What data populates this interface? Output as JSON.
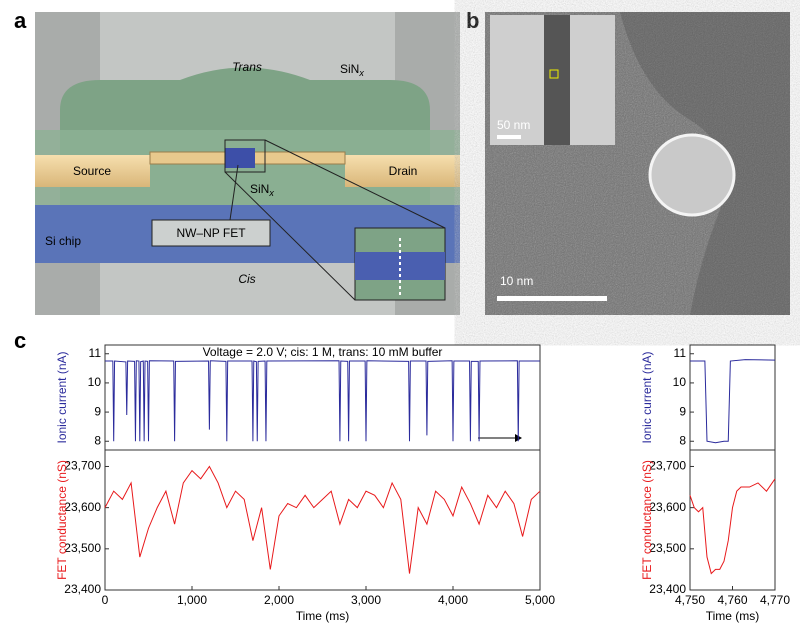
{
  "panels": [
    "a",
    "b",
    "c"
  ],
  "diagram": {
    "trans": "Trans",
    "cis": "Cis",
    "sinx_top": {
      "text": "SiN",
      "subscript": "x"
    },
    "sinx_mid": {
      "text": "SiN",
      "subscript": "x"
    },
    "source": "Source",
    "drain": "Drain",
    "device": "NW–NP FET",
    "chip": "Si chip"
  },
  "micrograph": {
    "inset_scale": "50 nm",
    "scale": "10 nm"
  },
  "chart_data": [
    {
      "type": "line",
      "color": "#2b2b9c",
      "ylabel": "Ionic current (nA)",
      "annotation": "Voltage = 2.0 V; cis: 1 M, trans: 10 mM buffer",
      "x": [
        0,
        90,
        100,
        110,
        240,
        250,
        260,
        340,
        350,
        360,
        390,
        400,
        410,
        440,
        450,
        460,
        490,
        500,
        510,
        790,
        800,
        810,
        1190,
        1200,
        1210,
        1390,
        1400,
        1410,
        1690,
        1700,
        1710,
        1740,
        1750,
        1760,
        1840,
        1850,
        1860,
        2690,
        2700,
        2710,
        2790,
        2800,
        2810,
        2990,
        3000,
        3010,
        3490,
        3500,
        3510,
        3690,
        3700,
        3710,
        3990,
        4000,
        4010,
        4190,
        4200,
        4210,
        4290,
        4300,
        4310,
        4740,
        4750,
        4760,
        5000
      ],
      "values": [
        10.75,
        10.75,
        8,
        10.75,
        10.72,
        8.9,
        10.75,
        10.74,
        8,
        10.76,
        10.75,
        8,
        10.73,
        10.75,
        8,
        10.75,
        10.74,
        8,
        10.76,
        10.75,
        8,
        10.74,
        10.75,
        8.4,
        10.76,
        10.74,
        8,
        10.75,
        10.75,
        8,
        10.75,
        10.73,
        8,
        10.74,
        10.75,
        8,
        10.75,
        10.76,
        8,
        10.75,
        10.74,
        8,
        10.75,
        10.75,
        8,
        10.76,
        10.74,
        8,
        10.75,
        10.75,
        8.2,
        10.74,
        10.76,
        8,
        10.75,
        10.75,
        8,
        10.74,
        10.74,
        8,
        10.75,
        10.76,
        8,
        10.75,
        10.75
      ],
      "xlim": [
        0,
        5000
      ],
      "ylim": [
        7.7,
        11.3
      ],
      "yticks": [
        8,
        9,
        10,
        11
      ]
    },
    {
      "type": "line",
      "color": "#e8191b",
      "ylabel": "FET conductance (nS)",
      "xlabel": "Time (ms)",
      "x": [
        0,
        100,
        200,
        300,
        400,
        500,
        600,
        700,
        800,
        900,
        1000,
        1100,
        1200,
        1300,
        1400,
        1500,
        1600,
        1700,
        1800,
        1900,
        2000,
        2100,
        2200,
        2300,
        2400,
        2500,
        2600,
        2700,
        2800,
        2900,
        3000,
        3100,
        3200,
        3300,
        3400,
        3500,
        3600,
        3700,
        3800,
        3900,
        4000,
        4100,
        4200,
        4300,
        4400,
        4500,
        4600,
        4700,
        4800,
        4900,
        5000
      ],
      "values": [
        23600,
        23640,
        23620,
        23660,
        23480,
        23550,
        23600,
        23640,
        23560,
        23660,
        23690,
        23670,
        23700,
        23660,
        23600,
        23640,
        23620,
        23520,
        23600,
        23450,
        23580,
        23610,
        23600,
        23630,
        23600,
        23620,
        23640,
        23560,
        23620,
        23600,
        23640,
        23630,
        23600,
        23660,
        23620,
        23440,
        23600,
        23560,
        23640,
        23620,
        23580,
        23650,
        23610,
        23560,
        23630,
        23600,
        23640,
        23610,
        23530,
        23620,
        23640
      ],
      "xlim": [
        0,
        5000
      ],
      "ylim": [
        23400,
        23740
      ],
      "yticks": [
        {
          "value": 23400,
          "label": "23,400"
        },
        {
          "value": 23500,
          "label": "23,500"
        },
        {
          "value": 23600,
          "label": "23,600"
        },
        {
          "value": 23700,
          "label": "23,700"
        }
      ],
      "xticks": [
        0,
        {
          "value": 1000,
          "label": "1,000"
        },
        {
          "value": 2000,
          "label": "2,000"
        },
        {
          "value": 3000,
          "label": "3,000"
        },
        {
          "value": 4000,
          "label": "4,000"
        },
        {
          "value": 5000,
          "label": "5,000"
        }
      ]
    },
    {
      "type": "line",
      "color": "#2b2b9c",
      "ylabel": "Ionic current (nA)",
      "x": [
        4750,
        4753.5,
        4754,
        4756,
        4758,
        4759,
        4759.5,
        4763,
        4770
      ],
      "values": [
        10.75,
        10.75,
        8,
        7.95,
        8,
        8,
        10.75,
        10.8,
        10.78
      ],
      "xlim": [
        4750,
        4770
      ],
      "ylim": [
        7.7,
        11.3
      ],
      "yticks": [
        8,
        9,
        10,
        11
      ]
    },
    {
      "type": "line",
      "color": "#e8191b",
      "ylabel": "FET conductance (nS)",
      "xlabel": "Time (ms)",
      "x": [
        4750,
        4751,
        4752,
        4753,
        4754,
        4755,
        4756,
        4757,
        4758,
        4759,
        4760,
        4761,
        4762,
        4764,
        4766,
        4768,
        4770
      ],
      "values": [
        23630,
        23600,
        23590,
        23600,
        23480,
        23440,
        23450,
        23450,
        23470,
        23520,
        23600,
        23640,
        23650,
        23650,
        23660,
        23640,
        23670
      ],
      "xlim": [
        4750,
        4770
      ],
      "ylim": [
        23400,
        23740
      ],
      "yticks": [
        {
          "value": 23400,
          "label": "23,400"
        },
        {
          "value": 23500,
          "label": "23,500"
        },
        {
          "value": 23600,
          "label": "23,600"
        },
        {
          "value": 23700,
          "label": "23,700"
        }
      ],
      "xticks": [
        {
          "value": 4750,
          "label": "4,750"
        },
        {
          "value": 4760,
          "label": "4,760"
        },
        {
          "value": 4770,
          "label": "4,770"
        }
      ]
    }
  ]
}
